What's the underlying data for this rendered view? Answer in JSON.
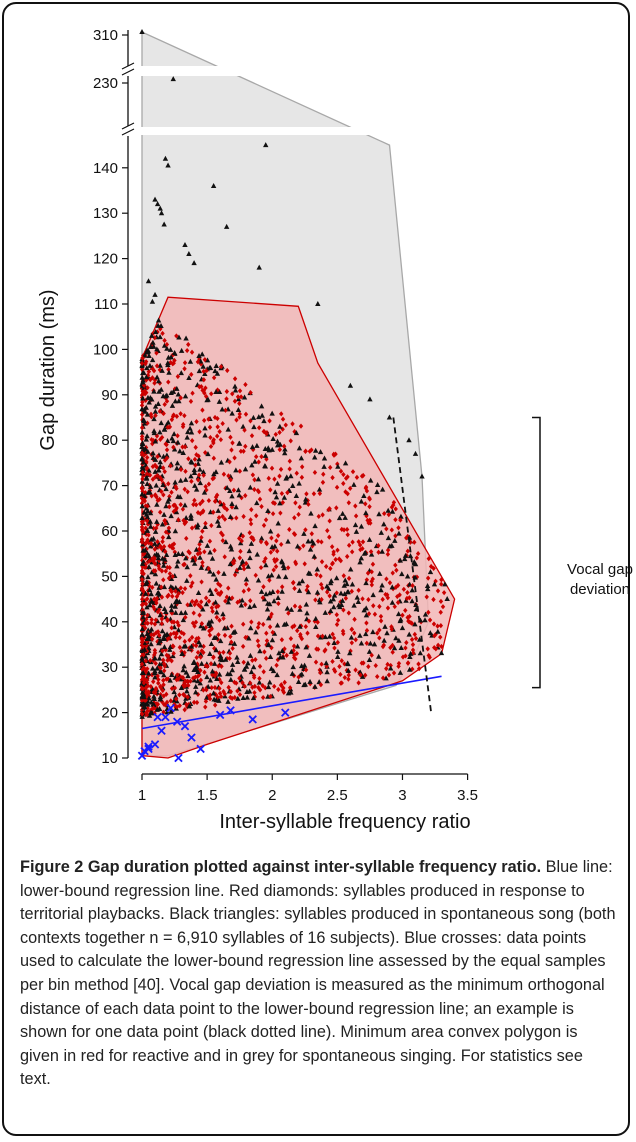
{
  "chart_data": {
    "type": "scatter",
    "xlabel": "Inter-syllable frequency ratio",
    "ylabel": "Gap duration (ms)",
    "xlim": [
      1,
      3.5
    ],
    "ylim": [
      10,
      145
    ],
    "y_axis_breaks": [
      "145-230",
      "230-310"
    ],
    "x_ticks": [
      {
        "value": 1,
        "label": "1"
      },
      {
        "value": 1.5,
        "label": "1.5"
      },
      {
        "value": 2,
        "label": "2"
      },
      {
        "value": 2.5,
        "label": "2.5"
      },
      {
        "value": 3,
        "label": "3"
      },
      {
        "value": 3.5,
        "label": "3.5"
      }
    ],
    "y_ticks": [
      {
        "value": 10,
        "label": "10"
      },
      {
        "value": 20,
        "label": "20"
      },
      {
        "value": 30,
        "label": "30"
      },
      {
        "value": 40,
        "label": "40"
      },
      {
        "value": 50,
        "label": "50"
      },
      {
        "value": 60,
        "label": "60"
      },
      {
        "value": 70,
        "label": "70"
      },
      {
        "value": 80,
        "label": "80"
      },
      {
        "value": 90,
        "label": "90"
      },
      {
        "value": 100,
        "label": "100"
      },
      {
        "value": 110,
        "label": "110"
      },
      {
        "value": 120,
        "label": "120"
      },
      {
        "value": 130,
        "label": "130"
      },
      {
        "value": 140,
        "label": "140"
      },
      {
        "value": 230,
        "label": "230"
      },
      {
        "value": 310,
        "label": "310"
      }
    ],
    "grid": false,
    "regression_line": {
      "color": "#1a1aff",
      "from": [
        1.0,
        16.5
      ],
      "to": [
        3.3,
        28.0
      ]
    },
    "series": [
      {
        "marker": "diamond",
        "color": "#cc0000",
        "hull": [
          [
            1.0,
            10.5
          ],
          [
            1.0,
            98.0
          ],
          [
            1.2,
            111.5
          ],
          [
            2.2,
            109.5
          ],
          [
            2.35,
            97.0
          ],
          [
            3.4,
            45.0
          ],
          [
            3.3,
            33.0
          ],
          [
            3.0,
            27.0
          ],
          [
            1.5,
            13.0
          ],
          [
            1.2,
            10.0
          ]
        ],
        "density_note": "dense cloud concentrated at x 1.0-1.8, y 20-80"
      },
      {
        "marker": "triangle",
        "color": "#000000",
        "hull": [
          [
            1.0,
            10.5
          ],
          [
            1.0,
            310.0
          ],
          [
            2.9,
            145.0
          ],
          [
            3.15,
            72.0
          ],
          [
            3.2,
            40.0
          ],
          [
            3.1,
            33.0
          ],
          [
            2.95,
            26.0
          ],
          [
            1.6,
            14.0
          ],
          [
            1.2,
            10.5
          ]
        ],
        "points": [
          [
            1.0,
            310.0
          ],
          [
            1.24,
            236.0
          ],
          [
            1.95,
            145.0
          ],
          [
            1.18,
            142.0
          ],
          [
            1.2,
            140.5
          ],
          [
            1.55,
            136.0
          ],
          [
            1.1,
            133.0
          ],
          [
            1.12,
            132.0
          ],
          [
            1.14,
            131.0
          ],
          [
            1.15,
            130.0
          ],
          [
            1.17,
            127.5
          ],
          [
            1.65,
            127.0
          ],
          [
            1.33,
            123.0
          ],
          [
            1.36,
            121.0
          ],
          [
            1.4,
            119.0
          ],
          [
            1.9,
            118.0
          ],
          [
            1.05,
            115.0
          ],
          [
            1.1,
            112.0
          ],
          [
            2.35,
            110.0
          ],
          [
            1.08,
            110.5
          ],
          [
            2.9,
            85.0
          ],
          [
            3.05,
            80.0
          ],
          [
            3.1,
            77.0
          ],
          [
            3.15,
            72.0
          ],
          [
            2.75,
            89.0
          ],
          [
            2.6,
            92.0
          ]
        ]
      },
      {
        "marker": "cross",
        "color": "#1a1aff",
        "points": [
          [
            1.0,
            10.5
          ],
          [
            1.02,
            11.5
          ],
          [
            1.05,
            12.0
          ],
          [
            1.1,
            13.0
          ],
          [
            1.15,
            16.0
          ],
          [
            1.18,
            19.0
          ],
          [
            1.22,
            21.0
          ],
          [
            1.27,
            18.0
          ],
          [
            1.33,
            17.0
          ],
          [
            1.38,
            14.5
          ],
          [
            1.45,
            12.0
          ],
          [
            1.28,
            10.0
          ],
          [
            1.6,
            19.5
          ],
          [
            1.68,
            20.5
          ],
          [
            1.85,
            18.5
          ],
          [
            2.1,
            20.0
          ],
          [
            1.12,
            19.0
          ],
          [
            1.05,
            12.5
          ]
        ]
      }
    ],
    "annotations": [
      {
        "text_lines": [
          "Vocal gap",
          "deviation"
        ]
      }
    ],
    "deviation_example": {
      "from": [
        2.93,
        85.0
      ],
      "to": [
        3.22,
        20.0
      ],
      "style": "dashed black"
    }
  },
  "caption": {
    "title": "Figure 2 Gap duration plotted against inter-syllable frequency ratio.",
    "text": " Blue line: lower-bound regression line. Red diamonds: syllables produced in response to territorial playbacks. Black triangles: syllables produced in spontaneous song (both contexts together n = 6,910 syllables of 16 subjects). Blue crosses: data points used to calculate the lower-bound regression line assessed by the equal samples per bin method [40]. Vocal gap deviation is measured as the minimum orthogonal distance of each data point to the lower-bound regression line; an example is shown for one data point (black dotted line). Minimum area convex polygon is given in red for reactive and in grey for spontaneous singing. For statistics see text."
  },
  "colors": {
    "red_hull_fill": "#f2b6b6",
    "red_hull_stroke": "#cc0000",
    "grey_hull_fill": "#e6e6e6",
    "grey_hull_stroke": "#a8a8a8",
    "diamond": "#cc0000",
    "triangle": "#111111",
    "cross": "#1a1aff"
  }
}
